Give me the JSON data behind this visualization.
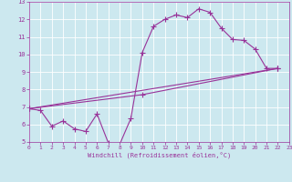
{
  "xlabel": "Windchill (Refroidissement éolien,°C)",
  "bg_color": "#cce8ef",
  "line_color": "#993399",
  "grid_color": "#b0d8e0",
  "xlim": [
    0,
    23
  ],
  "ylim": [
    5,
    13
  ],
  "xticks": [
    0,
    1,
    2,
    3,
    4,
    5,
    6,
    7,
    8,
    9,
    10,
    11,
    12,
    13,
    14,
    15,
    16,
    17,
    18,
    19,
    20,
    21,
    22,
    23
  ],
  "yticks": [
    5,
    6,
    7,
    8,
    9,
    10,
    11,
    12,
    13
  ],
  "series1_x": [
    0,
    1,
    2,
    3,
    4,
    5,
    6,
    7,
    8,
    9,
    10,
    11,
    12,
    13,
    14,
    15,
    16,
    17,
    18,
    19,
    20,
    21,
    22
  ],
  "series1_y": [
    6.9,
    6.8,
    5.9,
    6.2,
    5.75,
    5.6,
    6.6,
    4.95,
    4.85,
    6.35,
    10.1,
    11.6,
    12.0,
    12.25,
    12.1,
    12.6,
    12.4,
    11.5,
    10.85,
    10.8,
    10.3,
    9.2,
    9.2
  ],
  "series2_x": [
    0,
    22
  ],
  "series2_y": [
    6.9,
    9.2
  ],
  "series3_x": [
    0,
    10,
    22
  ],
  "series3_y": [
    6.9,
    7.7,
    9.2
  ],
  "marker": "+",
  "markersize": 4,
  "linewidth": 0.8
}
